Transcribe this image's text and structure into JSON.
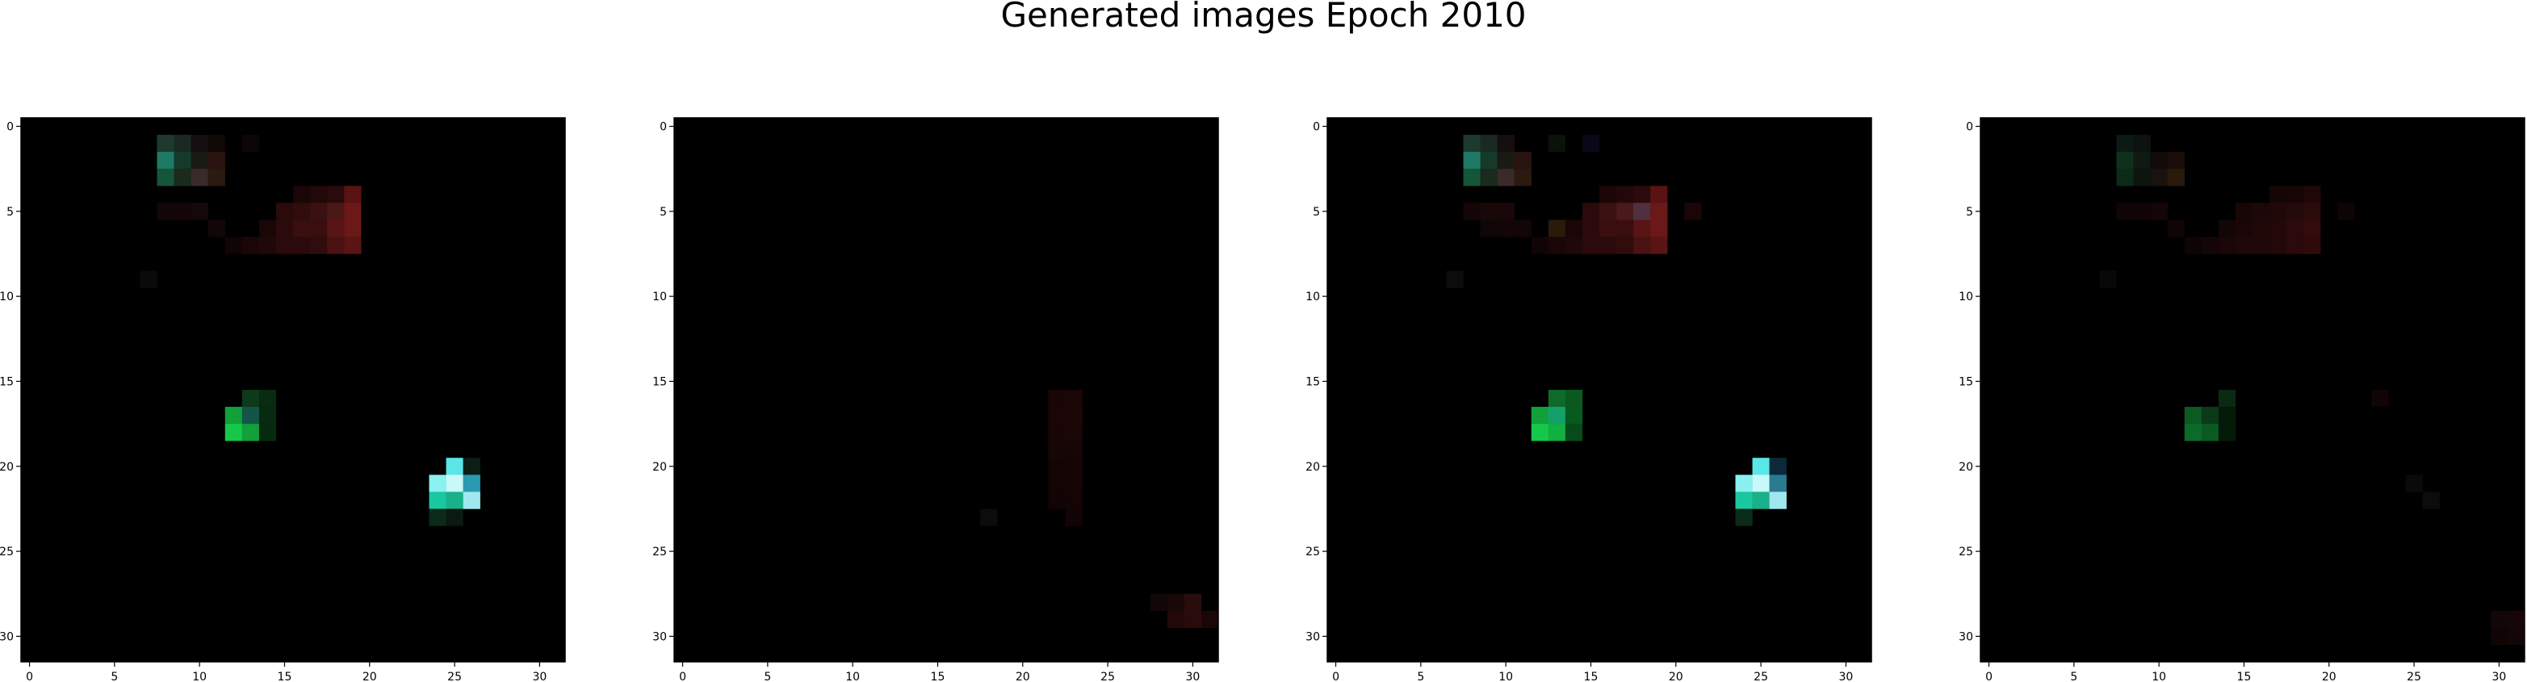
{
  "figure": {
    "title": "Generated images Epoch 2010"
  },
  "colors": {
    "background": "#000000",
    "axes_frame": "#000000",
    "figure_background": "#ffffff"
  },
  "chart_data": [
    {
      "type": "heatmap",
      "grid": false,
      "xlim": [
        -0.5,
        31.5
      ],
      "ylim": [
        31.5,
        -0.5
      ],
      "xticks": [
        0,
        5,
        10,
        15,
        20,
        25,
        30
      ],
      "yticks": [
        0,
        5,
        10,
        15,
        20,
        25,
        30
      ],
      "xlabel": "",
      "ylabel": "",
      "pixels": [
        [
          8,
          1,
          "#1e3a2e"
        ],
        [
          9,
          1,
          "#1a2a22"
        ],
        [
          10,
          1,
          "#150f0f"
        ],
        [
          11,
          1,
          "#110808"
        ],
        [
          13,
          1,
          "#0e0606"
        ],
        [
          8,
          2,
          "#1e7a64"
        ],
        [
          9,
          2,
          "#153a2a"
        ],
        [
          10,
          2,
          "#1a1a14"
        ],
        [
          11,
          2,
          "#2a1410"
        ],
        [
          8,
          3,
          "#15553a"
        ],
        [
          9,
          3,
          "#1a2a1c"
        ],
        [
          10,
          3,
          "#3a2a2a"
        ],
        [
          11,
          3,
          "#2a1a10"
        ],
        [
          16,
          4,
          "#1a0606"
        ],
        [
          17,
          4,
          "#220808"
        ],
        [
          18,
          4,
          "#2a0a0a"
        ],
        [
          19,
          4,
          "#5a1212"
        ],
        [
          8,
          5,
          "#120606"
        ],
        [
          9,
          5,
          "#140606"
        ],
        [
          10,
          5,
          "#140808"
        ],
        [
          15,
          5,
          "#2a0a0a"
        ],
        [
          16,
          5,
          "#300c0c"
        ],
        [
          17,
          5,
          "#3a1010"
        ],
        [
          18,
          5,
          "#4a1818"
        ],
        [
          19,
          5,
          "#6a1818"
        ],
        [
          11,
          6,
          "#120606"
        ],
        [
          14,
          6,
          "#1a0606"
        ],
        [
          15,
          6,
          "#2a0a0a"
        ],
        [
          16,
          6,
          "#3a0e0e"
        ],
        [
          17,
          6,
          "#3a0e0e"
        ],
        [
          18,
          6,
          "#5a1414"
        ],
        [
          19,
          6,
          "#6a1818"
        ],
        [
          12,
          7,
          "#100404"
        ],
        [
          13,
          7,
          "#1a0606"
        ],
        [
          14,
          7,
          "#200808"
        ],
        [
          15,
          7,
          "#2a0a0a"
        ],
        [
          16,
          7,
          "#2a0a0a"
        ],
        [
          17,
          7,
          "#300c0c"
        ],
        [
          18,
          7,
          "#4a1212"
        ],
        [
          19,
          7,
          "#5a1414"
        ],
        [
          7,
          9,
          "#0a0a0a"
        ],
        [
          13,
          16,
          "#0d3a18"
        ],
        [
          14,
          16,
          "#0a2a12"
        ],
        [
          12,
          17,
          "#11a03a"
        ],
        [
          13,
          17,
          "#14554a"
        ],
        [
          14,
          17,
          "#072a10"
        ],
        [
          12,
          18,
          "#16c84a"
        ],
        [
          13,
          18,
          "#11a03a"
        ],
        [
          14,
          18,
          "#062a10"
        ],
        [
          25,
          20,
          "#5ae6e6"
        ],
        [
          26,
          20,
          "#0a1e14"
        ],
        [
          24,
          21,
          "#8af0f0"
        ],
        [
          25,
          21,
          "#c8f8f8"
        ],
        [
          26,
          21,
          "#2a9ab0"
        ],
        [
          24,
          22,
          "#1ac8a0"
        ],
        [
          25,
          22,
          "#1ab08a"
        ],
        [
          26,
          22,
          "#a0e8f0"
        ],
        [
          24,
          23,
          "#0a2a1a"
        ],
        [
          25,
          23,
          "#0a1a12"
        ]
      ]
    },
    {
      "type": "heatmap",
      "grid": false,
      "xlim": [
        -0.5,
        31.5
      ],
      "ylim": [
        31.5,
        -0.5
      ],
      "xticks": [
        0,
        5,
        10,
        15,
        20,
        25,
        30
      ],
      "yticks": [
        0,
        5,
        10,
        15,
        20,
        25,
        30
      ],
      "xlabel": "",
      "ylabel": "",
      "pixels": [
        [
          22,
          16,
          "#180606"
        ],
        [
          23,
          16,
          "#1a0606"
        ],
        [
          22,
          17,
          "#1a0606"
        ],
        [
          23,
          17,
          "#1c0606"
        ],
        [
          22,
          18,
          "#180606"
        ],
        [
          23,
          18,
          "#1a0606"
        ],
        [
          22,
          19,
          "#160606"
        ],
        [
          23,
          19,
          "#180606"
        ],
        [
          22,
          20,
          "#140505"
        ],
        [
          23,
          20,
          "#160505"
        ],
        [
          22,
          21,
          "#140505"
        ],
        [
          23,
          21,
          "#160505"
        ],
        [
          22,
          22,
          "#120404"
        ],
        [
          23,
          22,
          "#140404"
        ],
        [
          18,
          23,
          "#0c0c0c"
        ],
        [
          23,
          23,
          "#120404"
        ],
        [
          28,
          28,
          "#120606"
        ],
        [
          29,
          28,
          "#180808"
        ],
        [
          30,
          28,
          "#2a0c0c"
        ],
        [
          29,
          29,
          "#220808"
        ],
        [
          30,
          29,
          "#2a0a0a"
        ],
        [
          31,
          29,
          "#1a0606"
        ]
      ]
    },
    {
      "type": "heatmap",
      "grid": false,
      "xlim": [
        -0.5,
        31.5
      ],
      "ylim": [
        31.5,
        -0.5
      ],
      "xticks": [
        0,
        5,
        10,
        15,
        20,
        25,
        30
      ],
      "yticks": [
        0,
        5,
        10,
        15,
        20,
        25,
        30
      ],
      "xlabel": "",
      "ylabel": "",
      "pixels": [
        [
          8,
          1,
          "#1e3a2e"
        ],
        [
          9,
          1,
          "#1a2a22"
        ],
        [
          10,
          1,
          "#150f0f"
        ],
        [
          13,
          1,
          "#0a120a"
        ],
        [
          15,
          1,
          "#08081a"
        ],
        [
          8,
          2,
          "#1e7a64"
        ],
        [
          9,
          2,
          "#153a2a"
        ],
        [
          10,
          2,
          "#1a1a14"
        ],
        [
          11,
          2,
          "#2a1410"
        ],
        [
          8,
          3,
          "#15553a"
        ],
        [
          9,
          3,
          "#1a2a1c"
        ],
        [
          10,
          3,
          "#3a2a2a"
        ],
        [
          11,
          3,
          "#2a1a10"
        ],
        [
          16,
          4,
          "#1a0606"
        ],
        [
          17,
          4,
          "#220808"
        ],
        [
          18,
          4,
          "#2a0a0a"
        ],
        [
          19,
          4,
          "#5a1212"
        ],
        [
          8,
          5,
          "#140606"
        ],
        [
          9,
          5,
          "#180808"
        ],
        [
          10,
          5,
          "#1a0808"
        ],
        [
          15,
          5,
          "#2a0a0a"
        ],
        [
          16,
          5,
          "#3a1212"
        ],
        [
          17,
          5,
          "#4a1a1a"
        ],
        [
          18,
          5,
          "#503040"
        ],
        [
          19,
          5,
          "#6a1818"
        ],
        [
          21,
          5,
          "#1a0606"
        ],
        [
          9,
          6,
          "#100606"
        ],
        [
          10,
          6,
          "#140606"
        ],
        [
          11,
          6,
          "#120606"
        ],
        [
          13,
          6,
          "#2a1a0a"
        ],
        [
          14,
          6,
          "#1a0606"
        ],
        [
          15,
          6,
          "#2a0a0a"
        ],
        [
          16,
          6,
          "#3a0e0e"
        ],
        [
          17,
          6,
          "#3a0e0e"
        ],
        [
          18,
          6,
          "#5a1414"
        ],
        [
          19,
          6,
          "#6a1818"
        ],
        [
          12,
          7,
          "#100404"
        ],
        [
          13,
          7,
          "#1a0606"
        ],
        [
          14,
          7,
          "#200808"
        ],
        [
          15,
          7,
          "#2a0a0a"
        ],
        [
          16,
          7,
          "#2a0a0a"
        ],
        [
          17,
          7,
          "#300c0c"
        ],
        [
          18,
          7,
          "#4a1212"
        ],
        [
          19,
          7,
          "#5a1414"
        ],
        [
          7,
          9,
          "#0c0c0c"
        ],
        [
          13,
          16,
          "#0d6a28"
        ],
        [
          14,
          16,
          "#0a5a20"
        ],
        [
          12,
          17,
          "#11a03a"
        ],
        [
          13,
          17,
          "#14a06a"
        ],
        [
          14,
          17,
          "#075a20"
        ],
        [
          12,
          18,
          "#16c84a"
        ],
        [
          13,
          18,
          "#11b040"
        ],
        [
          14,
          18,
          "#084a1a"
        ],
        [
          25,
          20,
          "#5ae6e6"
        ],
        [
          26,
          20,
          "#0a2a3a"
        ],
        [
          24,
          21,
          "#8af0f0"
        ],
        [
          25,
          21,
          "#c8f8f8"
        ],
        [
          26,
          21,
          "#2a7a90"
        ],
        [
          24,
          22,
          "#1ac8a0"
        ],
        [
          25,
          22,
          "#1ab08a"
        ],
        [
          26,
          22,
          "#a0e8f0"
        ],
        [
          24,
          23,
          "#0a2a1a"
        ]
      ]
    },
    {
      "type": "heatmap",
      "grid": false,
      "xlim": [
        -0.5,
        31.5
      ],
      "ylim": [
        31.5,
        -0.5
      ],
      "xticks": [
        0,
        5,
        10,
        15,
        20,
        25,
        30
      ],
      "yticks": [
        0,
        5,
        10,
        15,
        20,
        25,
        30
      ],
      "xlabel": "",
      "ylabel": "",
      "pixels": [
        [
          8,
          1,
          "#0c1a14"
        ],
        [
          9,
          1,
          "#0c120e"
        ],
        [
          8,
          2,
          "#10301e"
        ],
        [
          9,
          2,
          "#0e1a12"
        ],
        [
          10,
          2,
          "#100a08"
        ],
        [
          11,
          2,
          "#1a0c08"
        ],
        [
          8,
          3,
          "#0c2a18"
        ],
        [
          9,
          3,
          "#0e140e"
        ],
        [
          10,
          3,
          "#1a1210"
        ],
        [
          11,
          3,
          "#2a1a0c"
        ],
        [
          17,
          4,
          "#140606"
        ],
        [
          18,
          4,
          "#180606"
        ],
        [
          19,
          4,
          "#200808"
        ],
        [
          8,
          5,
          "#100404"
        ],
        [
          9,
          5,
          "#120404"
        ],
        [
          10,
          5,
          "#140606"
        ],
        [
          15,
          5,
          "#180606"
        ],
        [
          16,
          5,
          "#1c0808"
        ],
        [
          17,
          5,
          "#200808"
        ],
        [
          18,
          5,
          "#240a0a"
        ],
        [
          19,
          5,
          "#2a0a0a"
        ],
        [
          21,
          5,
          "#0e0404"
        ],
        [
          11,
          6,
          "#100404"
        ],
        [
          14,
          6,
          "#140606"
        ],
        [
          15,
          6,
          "#1a0606"
        ],
        [
          16,
          6,
          "#200808"
        ],
        [
          17,
          6,
          "#220808"
        ],
        [
          18,
          6,
          "#2a0a0a"
        ],
        [
          19,
          6,
          "#320c0c"
        ],
        [
          12,
          7,
          "#0e0404"
        ],
        [
          13,
          7,
          "#140606"
        ],
        [
          14,
          7,
          "#1a0606"
        ],
        [
          15,
          7,
          "#1e0808"
        ],
        [
          16,
          7,
          "#1e0808"
        ],
        [
          17,
          7,
          "#220808"
        ],
        [
          18,
          7,
          "#2a0a0a"
        ],
        [
          19,
          7,
          "#300a0a"
        ],
        [
          7,
          9,
          "#080808"
        ],
        [
          14,
          16,
          "#0a2a12"
        ],
        [
          12,
          17,
          "#0a5a22"
        ],
        [
          13,
          17,
          "#0a3a18"
        ],
        [
          14,
          17,
          "#061a0a"
        ],
        [
          12,
          18,
          "#0c6a2a"
        ],
        [
          13,
          18,
          "#0a5a22"
        ],
        [
          14,
          18,
          "#061a0a"
        ],
        [
          23,
          16,
          "#100404"
        ],
        [
          25,
          21,
          "#0a0a0a"
        ],
        [
          26,
          22,
          "#0c0c0c"
        ],
        [
          30,
          29,
          "#120606"
        ],
        [
          31,
          29,
          "#180606"
        ],
        [
          30,
          30,
          "#100404"
        ],
        [
          31,
          30,
          "#140606"
        ]
      ]
    }
  ]
}
